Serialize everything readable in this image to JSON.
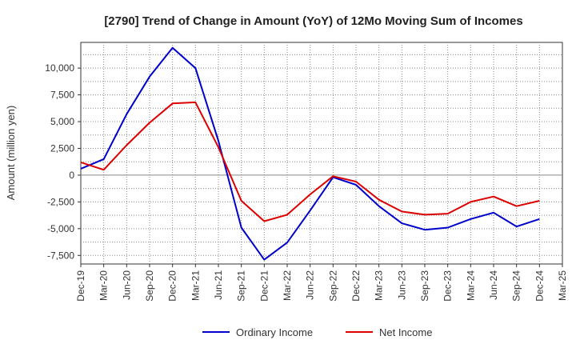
{
  "chart_data": {
    "type": "line",
    "title": "[2790]  Trend of Change in Amount (YoY) of 12Mo Moving Sum of Incomes",
    "xlabel": "",
    "ylabel": "Amount (million yen)",
    "categories": [
      "Dec-19",
      "Mar-20",
      "Jun-20",
      "Sep-20",
      "Dec-20",
      "Mar-21",
      "Jun-21",
      "Sep-21",
      "Dec-21",
      "Mar-22",
      "Jun-22",
      "Sep-22",
      "Dec-22",
      "Mar-23",
      "Jun-23",
      "Sep-23",
      "Dec-23",
      "Mar-24",
      "Jun-24",
      "Sep-24",
      "Dec-24",
      "Mar-25"
    ],
    "yticks": [
      -7500,
      -5000,
      -2500,
      0,
      2500,
      5000,
      7500,
      10000
    ],
    "ytick_labels": [
      "-7,500",
      "-5,000",
      "-2,500",
      "0",
      "2,500",
      "5,000",
      "7,500",
      "10,000"
    ],
    "ylim": [
      -8300,
      12400
    ],
    "grid": true,
    "legend_position": "bottom",
    "series": [
      {
        "name": "Ordinary Income",
        "color": "#0000cc",
        "values": [
          600,
          1500,
          5700,
          9200,
          11900,
          10000,
          3200,
          -4900,
          -7900,
          -6300,
          -3300,
          -200,
          -900,
          -2900,
          -4500,
          -5100,
          -4900,
          -4100,
          -3500,
          -4800,
          -4100,
          null
        ]
      },
      {
        "name": "Net Income",
        "color": "#dd0000",
        "values": [
          1200,
          500,
          2800,
          4900,
          6700,
          6800,
          2600,
          -2400,
          -4300,
          -3700,
          -1800,
          -100,
          -600,
          -2300,
          -3400,
          -3700,
          -3600,
          -2500,
          -2000,
          -2900,
          -2400,
          null
        ]
      }
    ]
  }
}
